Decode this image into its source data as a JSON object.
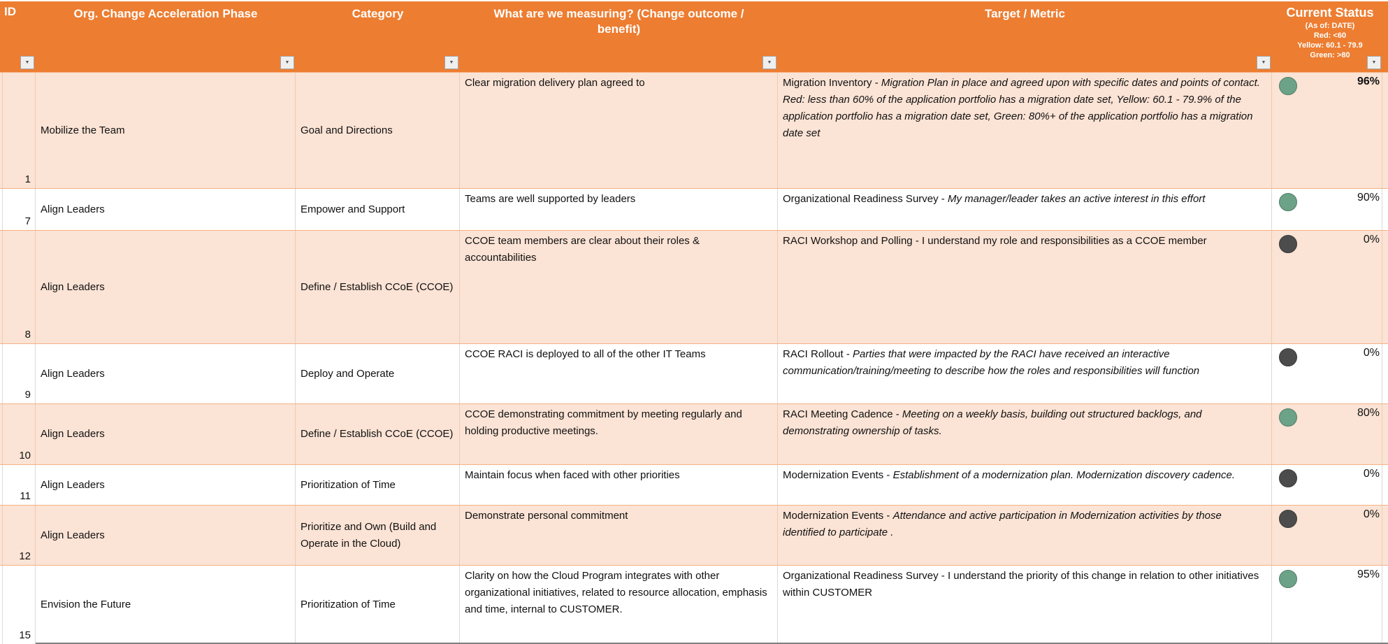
{
  "colors": {
    "header_bg": "#ED7D31",
    "row_alt_bg": "#FBE3D5",
    "status_green": "#6CA287",
    "status_dark": "#4C4C4C"
  },
  "icons": {
    "filter_arrow": "▼"
  },
  "table": {
    "headers": {
      "id": "ID",
      "phase": "Org. Change Acceleration Phase",
      "category": "Category",
      "measuring": "What are we measuring? (Change outcome / benefit)",
      "target": "Target / Metric"
    },
    "status_header": {
      "title": "Current Status",
      "as_of": "(As of: DATE)",
      "legend_red": "Red: <60",
      "legend_yellow": "Yellow: 60.1 - 79.9",
      "legend_green": "Green: >80"
    },
    "rows": [
      {
        "id": "1",
        "phase": "Mobilize the Team",
        "category": "Goal and Directions",
        "measuring": "Clear migration delivery plan agreed to",
        "target_prefix": "Migration Inventory  - ",
        "target_italic": "Migration Plan in place and agreed upon with specific dates and points of contact. Red: less than 60% of the application portfolio has a migration date set, Yellow: 60.1 - 79.9% of the application portfolio has a migration date set, Green: 80%+ of the application portfolio has a migration date set",
        "status_value": "96%",
        "status_color": "green",
        "value_weight": "bold"
      },
      {
        "id": "7",
        "phase": "Align Leaders",
        "category": "Empower and Support",
        "measuring": "Teams are well supported by leaders",
        "target_prefix": "Organizational Readiness Survey - ",
        "target_italic": "My manager/leader takes an active interest in this effort",
        "status_value": "90%",
        "status_color": "green",
        "value_weight": "normal"
      },
      {
        "id": "8",
        "phase": "Align Leaders",
        "category": "Define / Establish CCoE (CCOE)",
        "measuring": "CCOE team members are clear about their roles & accountabilities",
        "target_prefix": "RACI Workshop and Polling - I understand my role and responsibilities as a CCOE member",
        "target_italic": "",
        "status_value": "0%",
        "status_color": "dark",
        "value_weight": "normal"
      },
      {
        "id": "9",
        "phase": "Align Leaders",
        "category": "Deploy and Operate",
        "measuring": "CCOE RACI is deployed to all of the other IT Teams",
        "target_prefix": "RACI Rollout - ",
        "target_italic": "Parties that were impacted by the RACI have received an interactive communication/training/meeting to describe how the roles and responsibilities will function",
        "status_value": "0%",
        "status_color": "dark",
        "value_weight": "normal"
      },
      {
        "id": "10",
        "phase": "Align Leaders",
        "category": "Define / Establish CCoE (CCOE)",
        "measuring": "CCOE demonstrating commitment by meeting regularly and holding productive meetings.",
        "target_prefix": "RACI Meeting Cadence - ",
        "target_italic": "Meeting on a weekly basis, building out structured backlogs, and demonstrating ownership of tasks.",
        "status_value": "80%",
        "status_color": "green",
        "value_weight": "normal"
      },
      {
        "id": "11",
        "phase": "Align Leaders",
        "category": "Prioritization of Time",
        "measuring": "Maintain focus when faced with other priorities",
        "target_prefix": "Modernization Events -  ",
        "target_italic": "Establishment of a modernization plan. Modernization discovery cadence.",
        "status_value": "0%",
        "status_color": "dark",
        "value_weight": "normal"
      },
      {
        "id": "12",
        "phase": "Align Leaders",
        "category": "Prioritize and Own (Build and Operate in the Cloud)",
        "measuring": "Demonstrate personal commitment",
        "target_prefix": "Modernization Events -  ",
        "target_italic": "Attendance and active participation in Modernization activities by those identified to participate .",
        "status_value": "0%",
        "status_color": "dark",
        "value_weight": "normal"
      },
      {
        "id": "15",
        "phase": "Envision the Future",
        "category": "Prioritization of Time",
        "measuring": "Clarity on how the Cloud Program integrates with other organizational initiatives, related to resource allocation, emphasis and time, internal to CUSTOMER.",
        "target_prefix": "Organizational Readiness Survey - I understand the priority of this change in relation to other initiatives within CUSTOMER",
        "target_italic": "",
        "status_value": "95%",
        "status_color": "green",
        "value_weight": "normal"
      }
    ]
  }
}
